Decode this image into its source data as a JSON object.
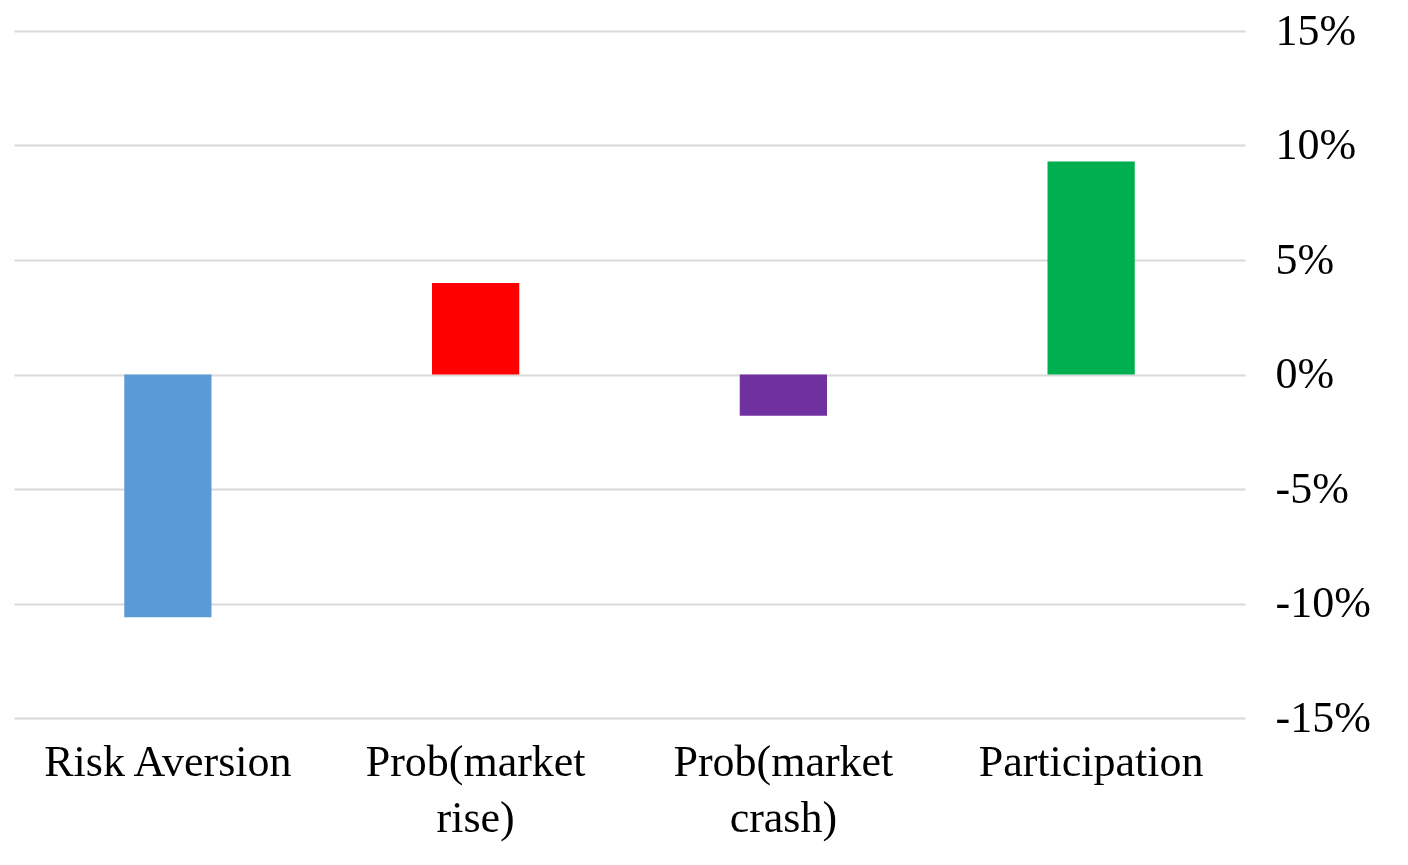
{
  "chart_data": {
    "type": "bar",
    "categories": [
      "Risk Aversion",
      "Prob(market rise)",
      "Prob(market crash)",
      "Participation"
    ],
    "values": [
      -10.6,
      4.0,
      -1.8,
      9.3
    ],
    "colors": [
      "#5b9bd5",
      "#ff0000",
      "#7030a0",
      "#00b050"
    ],
    "ylim": [
      -15,
      15
    ],
    "yticks": [
      {
        "value": -15,
        "label": "-15%"
      },
      {
        "value": -10,
        "label": "-10%"
      },
      {
        "value": -5,
        "label": "-5%"
      },
      {
        "value": 0,
        "label": "0%"
      },
      {
        "value": 5,
        "label": "5%"
      },
      {
        "value": 10,
        "label": "10%"
      },
      {
        "value": 15,
        "label": "15%"
      }
    ],
    "grid": "y"
  }
}
